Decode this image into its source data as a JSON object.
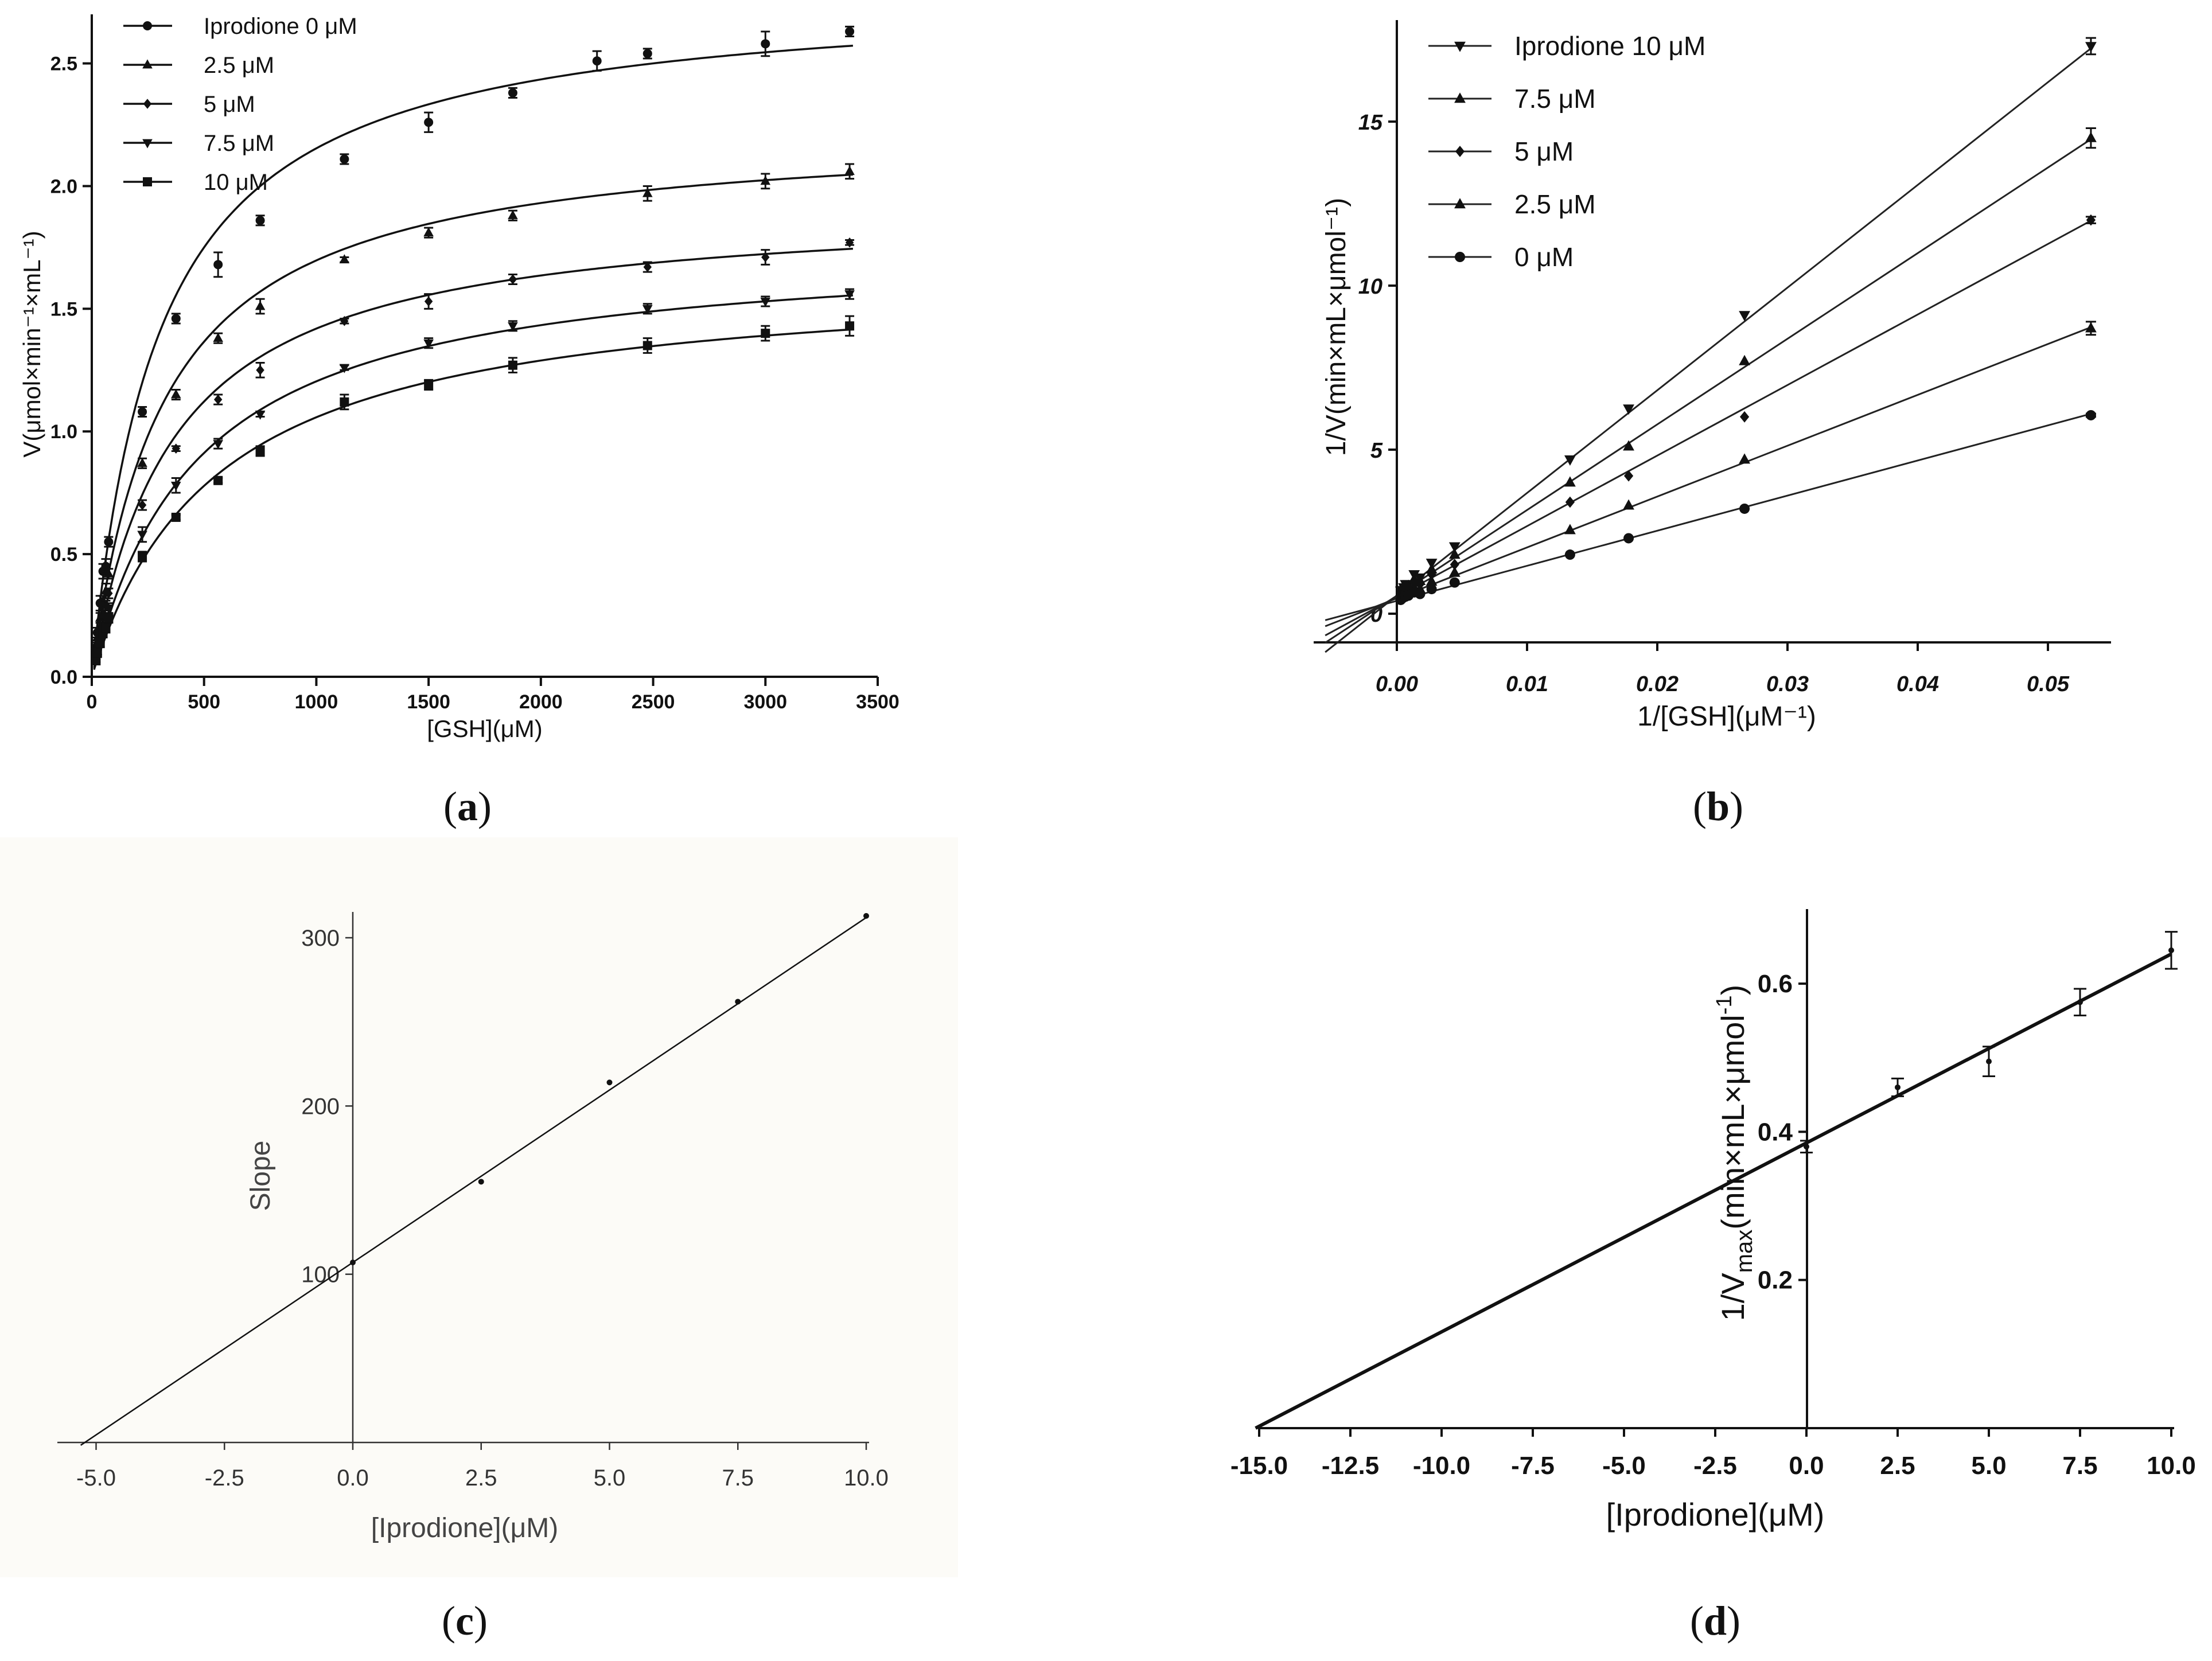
{
  "panels": {
    "a": {
      "caption_letter": "a",
      "chart_data": {
        "type": "scatter",
        "title": "",
        "xlabel": "[GSH](μM)",
        "ylabel": "V(μmol×min⁻¹×mL⁻¹)",
        "xlim": [
          0,
          3500
        ],
        "ylim": [
          0,
          2.7
        ],
        "xticks": [
          0,
          500,
          1000,
          1500,
          2000,
          2500,
          3000,
          3500
        ],
        "yticks": [
          0.0,
          0.5,
          1.0,
          1.5,
          2.0,
          2.5
        ],
        "xtick_labels": [
          "0",
          "500",
          "1000",
          "1500",
          "2000",
          "2500",
          "3000",
          "3500"
        ],
        "ytick_labels": [
          "0.0",
          "0.5",
          "1.0",
          "1.5",
          "2.0",
          "2.5"
        ],
        "legend_position": "top-left",
        "x": [
          18.75,
          25,
          37.5,
          50,
          62.5,
          75,
          225,
          375,
          562.5,
          750,
          1125,
          1500,
          1875,
          2250,
          2475,
          3000,
          3375
        ],
        "series": [
          {
            "name": "Iprodione 0 μM",
            "marker": "circle",
            "vmax": 2.8,
            "km": 300,
            "values": [
              0.12,
              0.18,
              0.3,
              0.43,
              0.45,
              0.55,
              1.08,
              1.46,
              1.68,
              1.86,
              2.11,
              2.26,
              2.38,
              2.51,
              2.54,
              2.58,
              2.63
            ],
            "errors": [
              0.02,
              0.02,
              0.03,
              0.03,
              0.03,
              0.02,
              0.02,
              0.02,
              0.05,
              0.02,
              0.02,
              0.04,
              0.02,
              0.04,
              0.02,
              0.05,
              0.02
            ]
          },
          {
            "name": "2.5 μM",
            "marker": "triangle-up",
            "vmax": 2.24,
            "km": 320,
            "values": [
              0.11,
              0.16,
              0.24,
              0.31,
              0.35,
              0.42,
              0.87,
              1.15,
              1.38,
              1.51,
              1.7,
              1.81,
              1.88,
              null,
              1.97,
              2.02,
              2.06
            ],
            "errors": [
              0.02,
              0.02,
              0.02,
              0.02,
              0.03,
              0.02,
              0.02,
              0.02,
              0.02,
              0.03,
              0.01,
              0.02,
              0.02,
              null,
              0.03,
              0.03,
              0.03
            ]
          },
          {
            "name": "5 μM",
            "marker": "diamond",
            "vmax": 1.93,
            "km": 360,
            "values": [
              0.09,
              0.13,
              0.2,
              0.26,
              0.29,
              0.34,
              0.7,
              0.93,
              1.13,
              1.25,
              1.45,
              1.53,
              1.62,
              null,
              1.67,
              1.71,
              1.77
            ],
            "errors": [
              0.02,
              0.02,
              0.02,
              0.02,
              0.02,
              0.02,
              0.02,
              0.01,
              0.02,
              0.03,
              0.01,
              0.03,
              0.02,
              null,
              0.02,
              0.03,
              0.01
            ]
          },
          {
            "name": "7.5 μM",
            "marker": "triangle-down",
            "vmax": 1.77,
            "km": 470,
            "values": [
              0.08,
              0.11,
              0.16,
              0.21,
              0.24,
              0.28,
              0.58,
              0.78,
              0.95,
              1.07,
              1.26,
              1.36,
              1.43,
              null,
              1.5,
              1.53,
              1.56
            ],
            "errors": [
              0.02,
              0.02,
              0.02,
              0.02,
              0.02,
              0.02,
              0.03,
              0.03,
              0.02,
              0.01,
              0.01,
              0.02,
              0.02,
              null,
              0.02,
              0.02,
              0.02
            ]
          },
          {
            "name": "10 μM",
            "marker": "square",
            "vmax": 1.65,
            "km": 560,
            "values": [
              0.07,
              0.1,
              0.14,
              0.18,
              0.2,
              0.24,
              0.49,
              0.65,
              0.8,
              0.92,
              1.12,
              1.19,
              1.27,
              null,
              1.35,
              1.4,
              1.43
            ],
            "errors": [
              0.02,
              0.02,
              0.02,
              0.02,
              0.02,
              0.02,
              0.02,
              0.01,
              0.01,
              0.02,
              0.03,
              0.02,
              0.03,
              null,
              0.03,
              0.03,
              0.04
            ]
          }
        ]
      }
    },
    "b": {
      "caption_letter": "b",
      "chart_data": {
        "type": "scatter",
        "title": "",
        "xlabel": "1/[GSH](μM⁻¹)",
        "ylabel": "1/V(min×mL×μmol⁻¹)",
        "xlim": [
          -0.0055,
          0.0545
        ],
        "ylim": [
          -1.0,
          18.0
        ],
        "xticks": [
          0.0,
          0.01,
          0.02,
          0.03,
          0.04,
          0.05
        ],
        "yticks": [
          0,
          5,
          10,
          15
        ],
        "xtick_labels": [
          "0.00",
          "0.01",
          "0.02",
          "0.03",
          "0.04",
          "0.05"
        ],
        "ytick_labels": [
          "0",
          "5",
          "10",
          "15"
        ],
        "legend_position": "top-left",
        "x": [
          0.000296,
          0.000333,
          0.000404,
          0.000533,
          0.000667,
          0.000889,
          0.00133,
          0.00178,
          0.00267,
          0.00444,
          0.0133,
          0.0178,
          0.0267,
          0.0533
        ],
        "series": [
          {
            "name": "Iprodione 10 μM",
            "marker": "triangle-down",
            "intercept": 0.55,
            "slope": 313,
            "values": [
              0.7,
              0.72,
              0.68,
              0.8,
              0.9,
              0.9,
              1.2,
              1.1,
              1.55,
              2.05,
              4.7,
              6.25,
              9.1,
              17.3
            ],
            "errors_last": 0.25
          },
          {
            "name": "7.5 μM",
            "marker": "triangle-up",
            "intercept": 0.55,
            "slope": 261,
            "values": [
              0.66,
              0.69,
              0.65,
              0.75,
              0.82,
              0.85,
              1.05,
              1.0,
              1.35,
              1.8,
              4.0,
              5.1,
              7.7,
              14.5
            ],
            "errors_last": 0.3
          },
          {
            "name": "5 μM",
            "marker": "diamond",
            "intercept": 0.52,
            "slope": 215,
            "values": [
              0.6,
              0.62,
              0.62,
              0.7,
              0.72,
              0.78,
              0.95,
              0.9,
              1.2,
              1.5,
              3.4,
              4.2,
              6.0,
              12.0
            ],
            "errors_last": 0.1
          },
          {
            "name": "2.5 μM",
            "marker": "triangle-up",
            "intercept": 0.47,
            "slope": 155,
            "values": [
              0.52,
              0.55,
              0.55,
              0.62,
              0.6,
              0.66,
              0.8,
              0.75,
              0.98,
              1.25,
              2.55,
              3.3,
              4.7,
              8.7
            ],
            "errors_last": 0.2
          },
          {
            "name": "0 μM",
            "marker": "circle",
            "intercept": 0.39,
            "slope": 107,
            "values": [
              0.42,
              0.45,
              0.46,
              0.5,
              0.52,
              0.55,
              0.65,
              0.6,
              0.75,
              0.95,
              1.8,
              2.3,
              3.2,
              6.05
            ],
            "errors_last": 0.05
          }
        ]
      }
    },
    "c": {
      "caption_letter": "c",
      "chart_data": {
        "type": "scatter",
        "title": "",
        "xlabel": "[Iprodione](μM)",
        "ylabel": "Slope",
        "xlim": [
          -5.6,
          10.4
        ],
        "ylim": [
          0,
          320
        ],
        "xticks": [
          -5,
          -2.5,
          0,
          2.5,
          5,
          7.5,
          10
        ],
        "yticks": [
          100,
          200,
          300
        ],
        "xtick_labels": [
          "-5.0",
          "-2.5",
          "0.0",
          "2.5",
          "5.0",
          "7.5",
          "10.0"
        ],
        "ytick_labels": [
          "100",
          "200",
          "300"
        ],
        "x": [
          0,
          2.5,
          5,
          7.5,
          10
        ],
        "values": [
          107,
          155,
          214,
          262,
          313
        ],
        "fit": {
          "slope": 20.5,
          "intercept": 107
        }
      }
    },
    "d": {
      "caption_letter": "d",
      "chart_data": {
        "type": "scatter",
        "title": "",
        "xlabel": "[Iprodione](μM)",
        "ylabel": "1/Vmax(min×mL×μmol⁻¹)",
        "ylabel_parts": {
          "prefix": "1/V",
          "subscript": "max",
          "suffix": "(min×mL×μmol",
          "sup": "-1",
          "close": ")"
        },
        "xlim": [
          -15,
          10
        ],
        "ylim": [
          0,
          0.7
        ],
        "xticks": [
          -15,
          -12.5,
          -10,
          -7.5,
          -5,
          -2.5,
          0,
          2.5,
          5,
          7.5,
          10
        ],
        "yticks": [
          0.2,
          0.4,
          0.6
        ],
        "xtick_labels": [
          "-15.0",
          "-12.5",
          "-10.0",
          "-7.5",
          "-5.0",
          "-2.5",
          "0.0",
          "2.5",
          "5.0",
          "7.5",
          "10.0"
        ],
        "ytick_labels": [
          "0.2",
          "0.4",
          "0.6"
        ],
        "x": [
          0,
          2.5,
          5,
          7.5,
          10
        ],
        "values": [
          0.38,
          0.46,
          0.495,
          0.575,
          0.645
        ],
        "errors": [
          0.008,
          0.012,
          0.02,
          0.018,
          0.025
        ],
        "fit": {
          "slope": 0.0255,
          "intercept": 0.385
        }
      }
    }
  }
}
